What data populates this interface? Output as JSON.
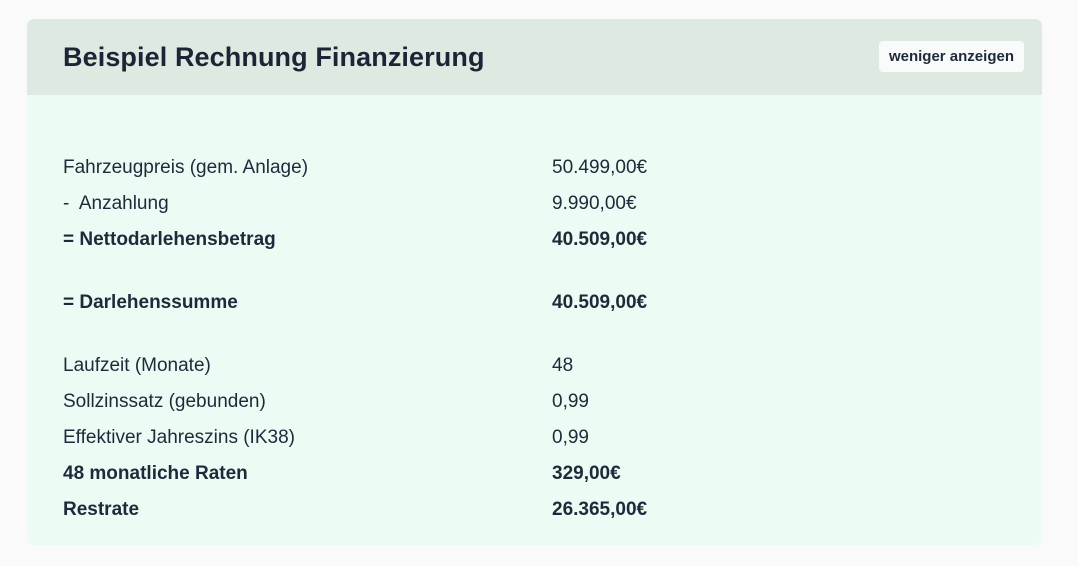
{
  "card": {
    "title": "Beispiel Rechnung Finanzierung",
    "toggle_label": "weniger anzeigen"
  },
  "rows": [
    {
      "label": "Fahrzeugpreis (gem. Anlage)",
      "value": "50.499,00€",
      "bold": false
    },
    {
      "label": "-  Anzahlung",
      "value": "9.990,00€",
      "bold": false
    },
    {
      "label": "= Nettodarlehensbetrag",
      "value": "40.509,00€",
      "bold": true
    },
    {
      "label": "= Darlehenssumme",
      "value": "40.509,00€",
      "bold": true
    },
    {
      "label": "Laufzeit (Monate)",
      "value": "48",
      "bold": false
    },
    {
      "label": "Sollzinssatz (gebunden)",
      "value": "0,99",
      "bold": false
    },
    {
      "label": "Effektiver Jahreszins (IK38)",
      "value": "0,99",
      "bold": false
    },
    {
      "label": "48 monatliche Raten",
      "value": "329,00€",
      "bold": true
    },
    {
      "label": "Restrate",
      "value": "26.365,00€",
      "bold": true
    }
  ],
  "colors": {
    "page_background": "#fafafa",
    "card_background": "#ecfbf4",
    "header_background": "#dee9e1",
    "text": "#1e2a3a"
  }
}
